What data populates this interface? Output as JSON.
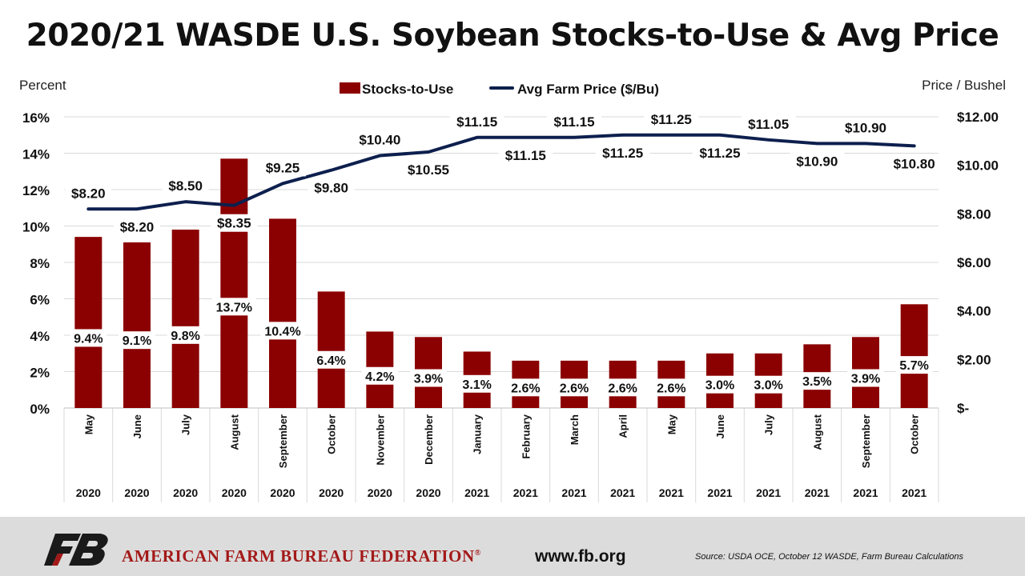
{
  "chart_data": {
    "type": "bar",
    "title": "2020/21 WASDE U.S. Soybean Stocks-to-Use & Avg Price",
    "ylabel_left": "Percent",
    "ylabel_right": "Price / Bushel",
    "categories": [
      "May",
      "June",
      "July",
      "August",
      "September",
      "October",
      "November",
      "December",
      "January",
      "February",
      "March",
      "April",
      "May",
      "June",
      "July",
      "August",
      "September",
      "October"
    ],
    "years": [
      "2020",
      "2020",
      "2020",
      "2020",
      "2020",
      "2020",
      "2020",
      "2020",
      "2021",
      "2021",
      "2021",
      "2021",
      "2021",
      "2021",
      "2021",
      "2021",
      "2021",
      "2021"
    ],
    "ylim_left": [
      0,
      16
    ],
    "yticks_left": [
      "0%",
      "2%",
      "4%",
      "6%",
      "8%",
      "10%",
      "12%",
      "14%",
      "16%"
    ],
    "ylim_right": [
      0,
      12
    ],
    "yticks_right": [
      "$-",
      "$2.00",
      "$4.00",
      "$6.00",
      "$8.00",
      "$10.00",
      "$12.00"
    ],
    "grid": true,
    "legend_position": "top-center",
    "series": [
      {
        "name": "Stocks-to-Use",
        "type": "bar",
        "axis": "left",
        "color": "#8b0000",
        "values": [
          9.4,
          9.1,
          9.8,
          13.7,
          10.4,
          6.4,
          4.2,
          3.9,
          3.1,
          2.6,
          2.6,
          2.6,
          2.6,
          3.0,
          3.0,
          3.5,
          3.9,
          5.7
        ],
        "labels": [
          "9.4%",
          "9.1%",
          "9.8%",
          "13.7%",
          "10.4%",
          "6.4%",
          "4.2%",
          "3.9%",
          "3.1%",
          "2.6%",
          "2.6%",
          "2.6%",
          "2.6%",
          "3.0%",
          "3.0%",
          "3.5%",
          "3.9%",
          "5.7%"
        ]
      },
      {
        "name": "Avg Farm Price ($/Bu)",
        "type": "line",
        "axis": "right",
        "color": "#0d1f4d",
        "values": [
          8.2,
          8.2,
          8.5,
          8.35,
          9.25,
          9.8,
          10.4,
          10.55,
          11.15,
          11.15,
          11.15,
          11.25,
          11.25,
          11.25,
          11.05,
          10.9,
          10.9,
          10.8
        ],
        "labels": [
          "$8.20",
          "$8.20",
          "$8.50",
          "$8.35",
          "$9.25",
          "$9.80",
          "$10.40",
          "$10.55",
          "$11.15",
          "$11.15",
          "$11.15",
          "$11.25",
          "$11.25",
          "$11.25",
          "$11.05",
          "$10.90",
          "$10.90",
          "$10.80"
        ]
      }
    ]
  },
  "footer": {
    "org_name": "AMERICAN FARM BUREAU FEDERATION",
    "registered_mark": "®",
    "website": "www.fb.org",
    "source": "Source: USDA OCE, October 12 WASDE, Farm Bureau Calculations",
    "logo_icon": "fb-logo-icon",
    "background": "#dcdcdc",
    "brand_color": "#a31919"
  }
}
